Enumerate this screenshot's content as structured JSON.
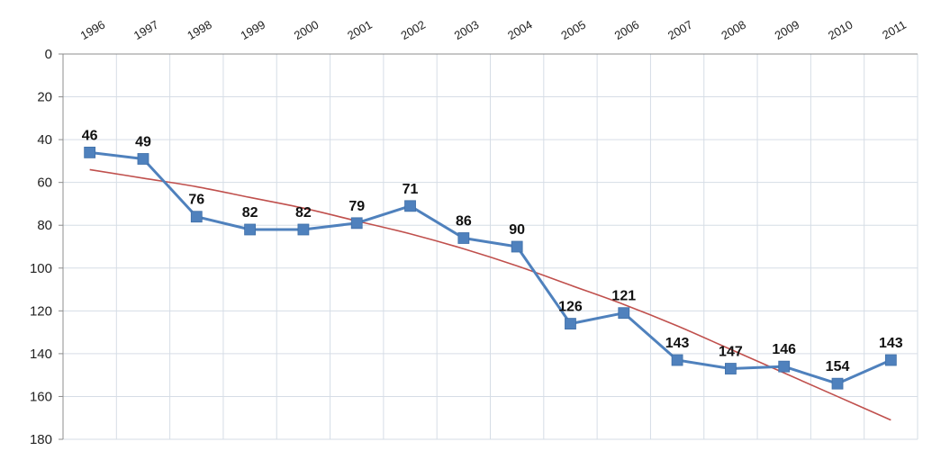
{
  "chart_data": {
    "type": "line",
    "title": "",
    "xlabel": "",
    "ylabel": "",
    "y_axis_inverted": true,
    "x_axis_position": "top",
    "ylim": [
      0,
      180
    ],
    "yticks": [
      "0",
      "20",
      "40",
      "60",
      "80",
      "100",
      "120",
      "140",
      "160",
      "180"
    ],
    "grid": true,
    "categories": [
      "1996",
      "1997",
      "1998",
      "1999",
      "2000",
      "2001",
      "2002",
      "2003",
      "2004",
      "2005",
      "2006",
      "2007",
      "2008",
      "2009",
      "2010",
      "2011"
    ],
    "series": [
      {
        "values": [
          46,
          49,
          76,
          82,
          82,
          79,
          71,
          86,
          90,
          126,
          121,
          143,
          147,
          146,
          154,
          143
        ],
        "labels": [
          "46",
          "49",
          "76",
          "82",
          "82",
          "79",
          "71",
          "86",
          "90",
          "126",
          "121",
          "143",
          "147",
          "146",
          "154",
          "143"
        ],
        "color": "#4f81bd",
        "marker": "square"
      },
      {
        "kind": "trendline",
        "values": [
          54,
          58,
          62,
          67,
          72,
          78,
          84,
          91,
          99,
          108,
          117,
          127,
          138,
          149,
          160,
          171
        ],
        "color": "#c0504d"
      }
    ]
  }
}
